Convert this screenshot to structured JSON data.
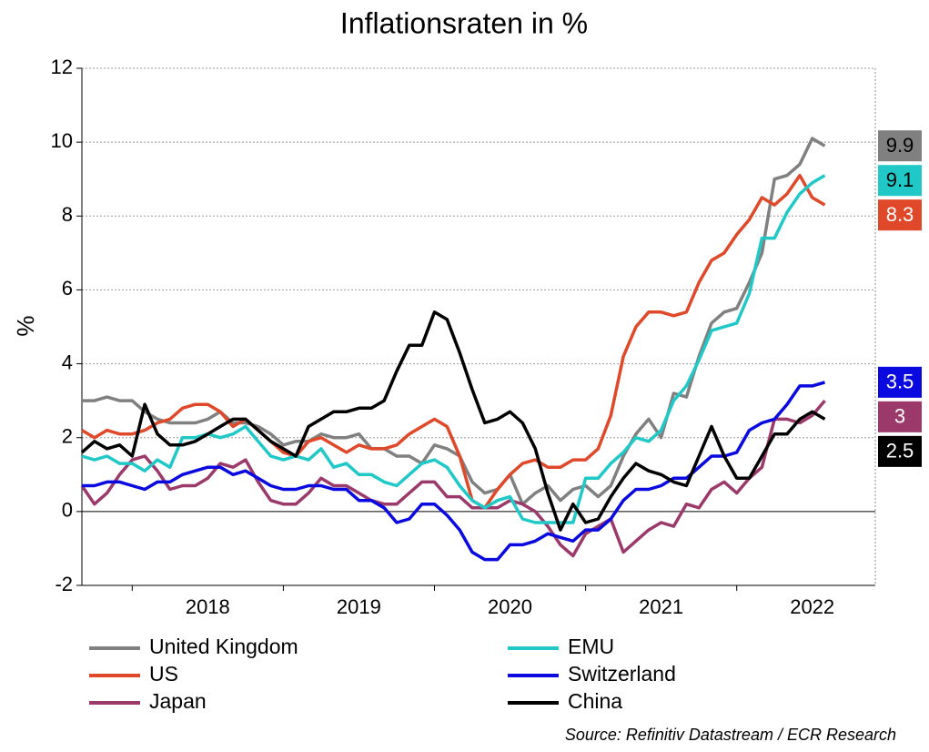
{
  "chart_data": {
    "type": "line",
    "title": "Inflationsraten in %",
    "ylabel": "%",
    "source": "Source: Refinitiv Datastream / ECR Research",
    "x": [
      2017.667,
      2017.75,
      2017.833,
      2017.917,
      2018,
      2018.083,
      2018.167,
      2018.25,
      2018.333,
      2018.417,
      2018.5,
      2018.583,
      2018.667,
      2018.75,
      2018.833,
      2018.917,
      2019,
      2019.083,
      2019.167,
      2019.25,
      2019.333,
      2019.417,
      2019.5,
      2019.583,
      2019.667,
      2019.75,
      2019.833,
      2019.917,
      2020,
      2020.083,
      2020.167,
      2020.25,
      2020.333,
      2020.417,
      2020.5,
      2020.583,
      2020.667,
      2020.75,
      2020.833,
      2020.917,
      2021,
      2021.083,
      2021.167,
      2021.25,
      2021.333,
      2021.417,
      2021.5,
      2021.583,
      2021.667,
      2021.75,
      2021.833,
      2021.917,
      2022,
      2022.083,
      2022.167,
      2022.25,
      2022.333,
      2022.417,
      2022.5,
      2022.583
    ],
    "xlim": [
      2017.667,
      2022.917
    ],
    "xticks": [
      2018,
      2019,
      2020,
      2021,
      2022
    ],
    "ylim": [
      -2,
      12
    ],
    "yticks": [
      -2,
      0,
      2,
      4,
      6,
      8,
      10,
      12
    ],
    "grid": true,
    "series": [
      {
        "name": "United Kingdom",
        "color": "#808080",
        "values": [
          3.0,
          3.0,
          3.1,
          3.0,
          3.0,
          2.7,
          2.5,
          2.4,
          2.4,
          2.4,
          2.5,
          2.7,
          2.4,
          2.4,
          2.3,
          2.1,
          1.8,
          1.9,
          1.9,
          2.1,
          2.0,
          2.0,
          2.1,
          1.7,
          1.7,
          1.5,
          1.5,
          1.3,
          1.8,
          1.7,
          1.5,
          0.8,
          0.5,
          0.6,
          1.0,
          0.2,
          0.5,
          0.7,
          0.3,
          0.6,
          0.7,
          0.4,
          0.7,
          1.5,
          2.1,
          2.5,
          2.0,
          3.2,
          3.1,
          4.2,
          5.1,
          5.4,
          5.5,
          6.2,
          7.0,
          9.0,
          9.1,
          9.4,
          10.1,
          9.9
        ]
      },
      {
        "name": "US",
        "color": "#e0482a",
        "values": [
          2.2,
          2.0,
          2.2,
          2.1,
          2.1,
          2.2,
          2.4,
          2.5,
          2.8,
          2.9,
          2.9,
          2.7,
          2.3,
          2.5,
          2.2,
          1.9,
          1.6,
          1.5,
          1.9,
          2.0,
          1.8,
          1.6,
          1.8,
          1.7,
          1.7,
          1.8,
          2.1,
          2.3,
          2.5,
          2.3,
          1.5,
          0.3,
          0.1,
          0.6,
          1.0,
          1.3,
          1.4,
          1.2,
          1.2,
          1.4,
          1.4,
          1.7,
          2.6,
          4.2,
          5.0,
          5.4,
          5.4,
          5.3,
          5.4,
          6.2,
          6.8,
          7.0,
          7.5,
          7.9,
          8.5,
          8.3,
          8.6,
          9.1,
          8.5,
          8.3
        ]
      },
      {
        "name": "Japan",
        "color": "#9b3a6a",
        "values": [
          0.7,
          0.2,
          0.5,
          1.0,
          1.4,
          1.5,
          1.1,
          0.6,
          0.7,
          0.7,
          0.9,
          1.3,
          1.2,
          1.4,
          0.8,
          0.3,
          0.2,
          0.2,
          0.5,
          0.9,
          0.7,
          0.7,
          0.5,
          0.3,
          0.2,
          0.2,
          0.5,
          0.8,
          0.8,
          0.4,
          0.4,
          0.1,
          0.1,
          0.1,
          0.3,
          0.2,
          0.0,
          -0.4,
          -0.9,
          -1.2,
          -0.6,
          -0.4,
          -0.2,
          -1.1,
          -0.8,
          -0.5,
          -0.3,
          -0.4,
          0.2,
          0.1,
          0.6,
          0.8,
          0.5,
          0.9,
          1.2,
          2.5,
          2.5,
          2.4,
          2.6,
          3.0
        ]
      },
      {
        "name": "EMU",
        "color": "#20c8c8",
        "values": [
          1.5,
          1.4,
          1.5,
          1.3,
          1.3,
          1.1,
          1.4,
          1.2,
          2.0,
          2.0,
          2.1,
          2.0,
          2.1,
          2.3,
          1.9,
          1.5,
          1.4,
          1.5,
          1.4,
          1.7,
          1.2,
          1.3,
          1.0,
          1.0,
          0.8,
          0.7,
          1.0,
          1.3,
          1.4,
          1.2,
          0.7,
          0.3,
          0.1,
          0.3,
          0.4,
          -0.2,
          -0.3,
          -0.3,
          -0.3,
          -0.3,
          0.9,
          0.9,
          1.3,
          1.6,
          2.0,
          1.9,
          2.2,
          3.0,
          3.4,
          4.1,
          4.9,
          5.0,
          5.1,
          5.9,
          7.4,
          7.4,
          8.1,
          8.6,
          8.9,
          9.1
        ]
      },
      {
        "name": "Switzerland",
        "color": "#0a0ae0",
        "values": [
          0.7,
          0.7,
          0.8,
          0.8,
          0.7,
          0.6,
          0.8,
          0.8,
          1.0,
          1.1,
          1.2,
          1.2,
          1.0,
          1.1,
          0.9,
          0.7,
          0.6,
          0.6,
          0.7,
          0.7,
          0.6,
          0.6,
          0.3,
          0.3,
          0.1,
          -0.3,
          -0.2,
          0.2,
          0.2,
          -0.1,
          -0.5,
          -1.1,
          -1.3,
          -1.3,
          -0.9,
          -0.9,
          -0.8,
          -0.6,
          -0.7,
          -0.8,
          -0.5,
          -0.5,
          -0.2,
          0.3,
          0.6,
          0.6,
          0.7,
          0.9,
          0.9,
          1.2,
          1.5,
          1.5,
          1.6,
          2.2,
          2.4,
          2.5,
          2.9,
          3.4,
          3.4,
          3.5
        ]
      },
      {
        "name": "China",
        "color": "#000000",
        "values": [
          1.6,
          1.9,
          1.7,
          1.8,
          1.5,
          2.9,
          2.1,
          1.8,
          1.8,
          1.9,
          2.1,
          2.3,
          2.5,
          2.5,
          2.2,
          1.9,
          1.7,
          1.5,
          2.3,
          2.5,
          2.7,
          2.7,
          2.8,
          2.8,
          3.0,
          3.8,
          4.5,
          4.5,
          5.4,
          5.2,
          4.3,
          3.3,
          2.4,
          2.5,
          2.7,
          2.4,
          1.7,
          0.5,
          -0.5,
          0.2,
          -0.3,
          -0.2,
          0.4,
          0.9,
          1.3,
          1.1,
          1.0,
          0.8,
          0.7,
          1.5,
          2.3,
          1.5,
          0.9,
          0.9,
          1.5,
          2.1,
          2.1,
          2.5,
          2.7,
          2.5
        ]
      }
    ]
  }
}
